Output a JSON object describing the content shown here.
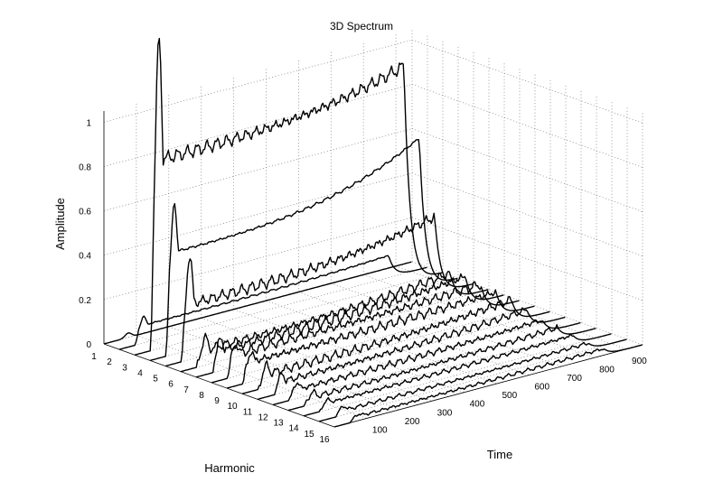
{
  "chart_data": {
    "type": "line",
    "title": "3D Spectrum",
    "xlabel": "Harmonic",
    "ylabel": "Time",
    "zlabel": "Amplitude",
    "harmonics": [
      1,
      2,
      3,
      4,
      5,
      6,
      7,
      8,
      9,
      10,
      11,
      12,
      13,
      14,
      15,
      16
    ],
    "time_ticks": [
      100,
      200,
      300,
      400,
      500,
      600,
      700,
      800,
      900
    ],
    "amplitude_ticks": [
      "0",
      "0.2",
      "0.4",
      "0.6",
      "0.8",
      "1"
    ],
    "xlim": [
      1,
      16
    ],
    "ylim": [
      0,
      950
    ],
    "zlim": [
      0,
      1.05
    ],
    "grid": true,
    "series": [
      {
        "harmonic": 1,
        "plateau": 0.0,
        "onset_peak": 0.02,
        "end_peak": 0.0,
        "noise": 0.0
      },
      {
        "harmonic": 2,
        "plateau": 0.08,
        "onset_peak": 0.08,
        "end_peak": 0.1,
        "noise": 0.005
      },
      {
        "harmonic": 3,
        "plateau": 0.85,
        "onset_peak": 0.97,
        "end_peak": 0.98,
        "noise": 0.035
      },
      {
        "harmonic": 4,
        "plateau": 0.46,
        "onset_peak": 0.45,
        "end_peak": 0.68,
        "noise": 0.008
      },
      {
        "harmonic": 5,
        "plateau": 0.25,
        "onset_peak": 0.34,
        "end_peak": 0.35,
        "noise": 0.03
      },
      {
        "harmonic": 6,
        "plateau": 0.07,
        "onset_peak": 0.09,
        "end_peak": 0.12,
        "noise": 0.025
      },
      {
        "harmonic": 7,
        "plateau": 0.09,
        "onset_peak": 0.1,
        "end_peak": 0.13,
        "noise": 0.03
      },
      {
        "harmonic": 8,
        "plateau": 0.1,
        "onset_peak": 0.1,
        "end_peak": 0.12,
        "noise": 0.025
      },
      {
        "harmonic": 9,
        "plateau": 0.09,
        "onset_peak": 0.09,
        "end_peak": 0.11,
        "noise": 0.025
      },
      {
        "harmonic": 10,
        "plateau": 0.06,
        "onset_peak": 0.07,
        "end_peak": 0.1,
        "noise": 0.025
      },
      {
        "harmonic": 11,
        "plateau": 0.05,
        "onset_peak": 0.06,
        "end_peak": 0.08,
        "noise": 0.02
      },
      {
        "harmonic": 12,
        "plateau": 0.04,
        "onset_peak": 0.05,
        "end_peak": 0.06,
        "noise": 0.018
      },
      {
        "harmonic": 13,
        "plateau": 0.03,
        "onset_peak": 0.04,
        "end_peak": 0.05,
        "noise": 0.015
      },
      {
        "harmonic": 14,
        "plateau": 0.03,
        "onset_peak": 0.03,
        "end_peak": 0.04,
        "noise": 0.012
      },
      {
        "harmonic": 15,
        "plateau": 0.02,
        "onset_peak": 0.03,
        "end_peak": 0.03,
        "noise": 0.01
      },
      {
        "harmonic": 16,
        "plateau": 0.02,
        "onset_peak": 0.02,
        "end_peak": 0.03,
        "noise": 0.01
      }
    ],
    "signal_on_time": 50,
    "signal_off_time": 830
  }
}
